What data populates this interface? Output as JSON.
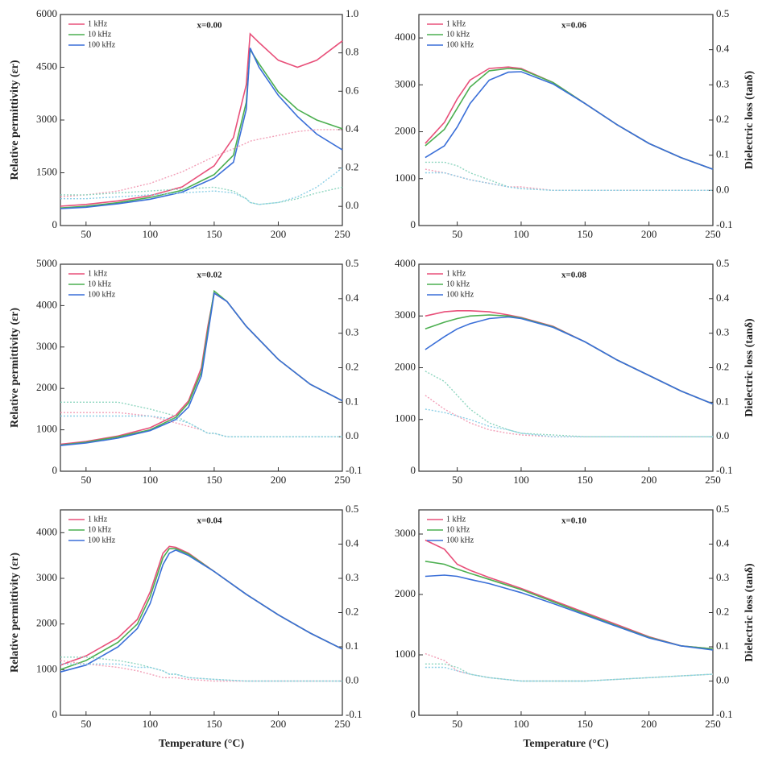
{
  "chart_data": [
    {
      "type": "line",
      "title": "x=0.00",
      "ylabel": "Relative permittivity (εr)",
      "x": [
        30,
        50,
        75,
        100,
        125,
        150,
        165,
        175,
        178,
        185,
        200,
        215,
        230,
        250
      ],
      "xlim": [
        30,
        250
      ],
      "xticks": [
        50,
        100,
        150,
        200,
        250
      ],
      "ylim": [
        0,
        6000
      ],
      "yticks": [
        0,
        1500,
        3000,
        4500,
        6000
      ],
      "y2lim": [
        -0.1,
        1.0
      ],
      "y2ticks": [
        {
          "value": 0,
          "label": "0.0"
        },
        0.2,
        0.4,
        0.6,
        0.8,
        {
          "value": 1,
          "label": "1.0"
        }
      ],
      "series": [
        {
          "name": "1 kHz",
          "color": "#e8507a",
          "values": [
            550,
            600,
            700,
            850,
            1100,
            1700,
            2500,
            4000,
            5450,
            5200,
            4700,
            4500,
            4700,
            5250
          ]
        },
        {
          "name": "10 kHz",
          "color": "#4caf50",
          "values": [
            500,
            550,
            650,
            800,
            1000,
            1450,
            2000,
            3500,
            5000,
            4600,
            3800,
            3300,
            3000,
            2750
          ]
        },
        {
          "name": "100 kHz",
          "color": "#3a6fd8",
          "values": [
            480,
            520,
            620,
            750,
            950,
            1350,
            1800,
            3300,
            5050,
            4500,
            3700,
            3100,
            2600,
            2150
          ]
        },
        {
          "color": "#f2a0b8",
          "axis": "y2",
          "values": [
            0.05,
            0.06,
            0.08,
            0.12,
            0.18,
            0.26,
            0.3,
            0.33,
            0.34,
            0.35,
            0.37,
            0.39,
            0.4,
            0.4
          ]
        },
        {
          "color": "#8fd6c0",
          "axis": "y2",
          "values": [
            0.06,
            0.06,
            0.07,
            0.08,
            0.09,
            0.1,
            0.08,
            0.04,
            0.02,
            0.01,
            0.02,
            0.04,
            0.07,
            0.1
          ]
        },
        {
          "color": "#8ccfe6",
          "axis": "y2",
          "values": [
            0.04,
            0.04,
            0.05,
            0.06,
            0.07,
            0.08,
            0.07,
            0.04,
            0.02,
            0.01,
            0.02,
            0.05,
            0.1,
            0.2
          ]
        }
      ]
    },
    {
      "type": "line",
      "title": "x=0.06",
      "y2label": "Dielectric loss (tanδ)",
      "x": [
        25,
        40,
        50,
        60,
        75,
        90,
        100,
        125,
        150,
        175,
        200,
        225,
        250
      ],
      "xlim": [
        20,
        250
      ],
      "xticks": [
        50,
        100,
        150,
        200,
        250
      ],
      "ylim": [
        0,
        4500
      ],
      "yticks": [
        0,
        1000,
        2000,
        3000,
        4000
      ],
      "y2lim": [
        -0.1,
        0.5
      ],
      "y2ticks": [
        -0.1,
        {
          "value": 0,
          "label": "0.0"
        },
        0.1,
        0.2,
        0.3,
        0.4,
        0.5
      ],
      "series": [
        {
          "name": "1 kHz",
          "color": "#e8507a",
          "values": [
            1750,
            2200,
            2700,
            3100,
            3350,
            3380,
            3350,
            3050,
            2600,
            2150,
            1750,
            1450,
            1200
          ]
        },
        {
          "name": "10 kHz",
          "color": "#4caf50",
          "values": [
            1700,
            2050,
            2500,
            2950,
            3300,
            3350,
            3330,
            3050,
            2600,
            2150,
            1750,
            1450,
            1200
          ]
        },
        {
          "name": "100 kHz",
          "color": "#3a6fd8",
          "values": [
            1450,
            1700,
            2100,
            2600,
            3100,
            3270,
            3280,
            3020,
            2600,
            2150,
            1750,
            1450,
            1200
          ]
        },
        {
          "color": "#f2a0b8",
          "axis": "y2",
          "values": [
            0.06,
            0.05,
            0.04,
            0.03,
            0.02,
            0.01,
            0.01,
            0.0,
            0.0,
            0.0,
            0.0,
            0.0,
            0.0
          ]
        },
        {
          "color": "#8fd6c0",
          "axis": "y2",
          "values": [
            0.08,
            0.08,
            0.07,
            0.05,
            0.03,
            0.01,
            0.005,
            0,
            0,
            0,
            0,
            0,
            0
          ]
        },
        {
          "color": "#8ccfe6",
          "axis": "y2",
          "values": [
            0.05,
            0.05,
            0.04,
            0.03,
            0.02,
            0.01,
            0.005,
            0,
            0,
            0,
            0,
            0,
            0
          ]
        }
      ]
    },
    {
      "type": "line",
      "title": "x=0.02",
      "ylabel": "Relative permittivity (εr)",
      "x": [
        30,
        50,
        75,
        100,
        120,
        130,
        140,
        145,
        150,
        160,
        175,
        200,
        225,
        250
      ],
      "xlim": [
        30,
        250
      ],
      "xticks": [
        50,
        100,
        150,
        200,
        250
      ],
      "ylim": [
        0,
        5000
      ],
      "yticks": [
        0,
        1000,
        2000,
        3000,
        4000,
        5000
      ],
      "y2lim": [
        -0.1,
        0.5
      ],
      "y2ticks": [
        -0.1,
        {
          "value": 0,
          "label": "0.0"
        },
        0.1,
        0.2,
        0.3,
        0.4,
        0.5
      ],
      "series": [
        {
          "name": "1 kHz",
          "color": "#e8507a",
          "values": [
            650,
            720,
            850,
            1050,
            1350,
            1700,
            2500,
            3500,
            4300,
            4100,
            3500,
            2700,
            2100,
            1700
          ]
        },
        {
          "name": "10 kHz",
          "color": "#4caf50",
          "values": [
            630,
            700,
            830,
            1000,
            1300,
            1650,
            2400,
            3400,
            4350,
            4100,
            3500,
            2700,
            2100,
            1700
          ]
        },
        {
          "name": "100 kHz",
          "color": "#3a6fd8",
          "values": [
            620,
            680,
            800,
            980,
            1250,
            1550,
            2300,
            3300,
            4300,
            4100,
            3500,
            2700,
            2100,
            1700
          ]
        },
        {
          "color": "#f2a0b8",
          "axis": "y2",
          "values": [
            0.07,
            0.07,
            0.07,
            0.06,
            0.04,
            0.03,
            0.02,
            0.01,
            0.01,
            0,
            0,
            0,
            0,
            0
          ]
        },
        {
          "color": "#8fd6c0",
          "axis": "y2",
          "values": [
            0.1,
            0.1,
            0.1,
            0.08,
            0.06,
            0.04,
            0.02,
            0.01,
            0.01,
            0,
            0,
            0,
            0,
            0
          ]
        },
        {
          "color": "#8ccfe6",
          "axis": "y2",
          "values": [
            0.06,
            0.06,
            0.06,
            0.06,
            0.05,
            0.04,
            0.02,
            0.01,
            0.01,
            0,
            0,
            0,
            0,
            0
          ]
        }
      ]
    },
    {
      "type": "line",
      "title": "x=0.08",
      "y2label": "Dielectric loss (tanδ)",
      "x": [
        25,
        40,
        50,
        60,
        75,
        90,
        100,
        125,
        150,
        175,
        200,
        225,
        250
      ],
      "xlim": [
        20,
        250
      ],
      "xticks": [
        50,
        100,
        150,
        200,
        250
      ],
      "ylim": [
        0,
        4000
      ],
      "yticks": [
        0,
        1000,
        2000,
        3000,
        4000
      ],
      "y2lim": [
        -0.1,
        0.5
      ],
      "y2ticks": [
        -0.1,
        {
          "value": 0,
          "label": "0.0"
        },
        0.1,
        0.2,
        0.3,
        0.4,
        0.5
      ],
      "series": [
        {
          "name": "1 kHz",
          "color": "#e8507a",
          "values": [
            3000,
            3080,
            3100,
            3100,
            3080,
            3020,
            2970,
            2800,
            2500,
            2150,
            1850,
            1550,
            1300
          ]
        },
        {
          "name": "10 kHz",
          "color": "#4caf50",
          "values": [
            2750,
            2880,
            2950,
            3000,
            3020,
            3000,
            2960,
            2790,
            2500,
            2150,
            1850,
            1550,
            1300
          ]
        },
        {
          "name": "100 kHz",
          "color": "#3a6fd8",
          "values": [
            2350,
            2600,
            2750,
            2850,
            2950,
            2980,
            2950,
            2780,
            2500,
            2150,
            1850,
            1550,
            1300
          ]
        },
        {
          "color": "#f2a0b8",
          "axis": "y2",
          "values": [
            0.12,
            0.08,
            0.06,
            0.04,
            0.02,
            0.01,
            0.005,
            0,
            0,
            0,
            0,
            0,
            0
          ]
        },
        {
          "color": "#8fd6c0",
          "axis": "y2",
          "values": [
            0.19,
            0.16,
            0.12,
            0.08,
            0.04,
            0.02,
            0.01,
            0.005,
            0,
            0,
            0,
            0,
            0
          ]
        },
        {
          "color": "#8ccfe6",
          "axis": "y2",
          "values": [
            0.08,
            0.07,
            0.06,
            0.05,
            0.03,
            0.02,
            0.01,
            0,
            0,
            0,
            0,
            0,
            0
          ]
        }
      ]
    },
    {
      "type": "line",
      "title": "x=0.04",
      "ylabel": "Relative permittivity (εr)",
      "xlabel": "Temperature (°C)",
      "x": [
        30,
        50,
        75,
        90,
        100,
        110,
        115,
        120,
        130,
        150,
        175,
        200,
        225,
        250
      ],
      "xlim": [
        30,
        250
      ],
      "xticks": [
        50,
        100,
        150,
        200,
        250
      ],
      "ylim": [
        0,
        4500
      ],
      "yticks": [
        0,
        1000,
        2000,
        3000,
        4000
      ],
      "y2lim": [
        -0.1,
        0.5
      ],
      "y2ticks": [
        -0.1,
        {
          "value": 0,
          "label": "0.0"
        },
        0.1,
        0.2,
        0.3,
        0.4,
        0.5
      ],
      "series": [
        {
          "name": "1 kHz",
          "color": "#e8507a",
          "values": [
            1100,
            1300,
            1700,
            2100,
            2700,
            3550,
            3700,
            3680,
            3550,
            3150,
            2650,
            2200,
            1800,
            1450
          ]
        },
        {
          "name": "10 kHz",
          "color": "#4caf50",
          "values": [
            1000,
            1200,
            1600,
            2000,
            2600,
            3450,
            3650,
            3650,
            3530,
            3150,
            2650,
            2200,
            1800,
            1450
          ]
        },
        {
          "name": "100 kHz",
          "color": "#3a6fd8",
          "values": [
            950,
            1100,
            1500,
            1900,
            2450,
            3300,
            3550,
            3620,
            3500,
            3150,
            2650,
            2200,
            1800,
            1450
          ]
        },
        {
          "color": "#f2a0b8",
          "axis": "y2",
          "values": [
            0.06,
            0.05,
            0.04,
            0.03,
            0.02,
            0.01,
            0.01,
            0.01,
            0.005,
            0,
            0,
            0,
            0,
            0
          ]
        },
        {
          "color": "#8fd6c0",
          "axis": "y2",
          "values": [
            0.07,
            0.07,
            0.06,
            0.05,
            0.04,
            0.03,
            0.02,
            0.02,
            0.01,
            0.005,
            0,
            0,
            0,
            0
          ]
        },
        {
          "color": "#8ccfe6",
          "axis": "y2",
          "values": [
            0.05,
            0.05,
            0.05,
            0.04,
            0.04,
            0.03,
            0.02,
            0.02,
            0.01,
            0.005,
            0,
            0,
            0,
            0
          ]
        }
      ]
    },
    {
      "type": "line",
      "title": "x=0.10",
      "y2label": "Dielectric loss (tanδ)",
      "xlabel": "Temperature (°C)",
      "x": [
        25,
        40,
        50,
        60,
        75,
        100,
        125,
        150,
        175,
        200,
        225,
        250
      ],
      "xlim": [
        20,
        250
      ],
      "xticks": [
        50,
        100,
        150,
        200,
        250
      ],
      "ylim": [
        0,
        3400
      ],
      "yticks": [
        0,
        1000,
        2000,
        3000
      ],
      "y2lim": [
        -0.1,
        0.5
      ],
      "y2ticks": [
        -0.1,
        {
          "value": 0,
          "label": "0.0"
        },
        0.1,
        0.2,
        0.3,
        0.4,
        0.5
      ],
      "series": [
        {
          "name": "1 kHz",
          "color": "#e8507a",
          "values": [
            2900,
            2750,
            2500,
            2400,
            2280,
            2100,
            1900,
            1700,
            1500,
            1300,
            1150,
            1100
          ]
        },
        {
          "name": "10 kHz",
          "color": "#4caf50",
          "values": [
            2550,
            2500,
            2420,
            2350,
            2250,
            2080,
            1880,
            1680,
            1480,
            1290,
            1150,
            1100
          ]
        },
        {
          "name": "100 kHz",
          "color": "#3a6fd8",
          "values": [
            2300,
            2320,
            2300,
            2250,
            2180,
            2030,
            1850,
            1660,
            1470,
            1280,
            1150,
            1080
          ]
        },
        {
          "color": "#f2a0b8",
          "axis": "y2",
          "values": [
            0.08,
            0.06,
            0.03,
            0.02,
            0.01,
            0,
            0,
            0,
            0.005,
            0.01,
            0.015,
            0.02
          ]
        },
        {
          "color": "#8fd6c0",
          "axis": "y2",
          "values": [
            0.05,
            0.05,
            0.04,
            0.02,
            0.01,
            0,
            0,
            0,
            0.005,
            0.01,
            0.015,
            0.02
          ]
        },
        {
          "color": "#8ccfe6",
          "axis": "y2",
          "values": [
            0.04,
            0.04,
            0.03,
            0.02,
            0.01,
            0,
            0,
            0,
            0.005,
            0.01,
            0.015,
            0.02
          ]
        }
      ]
    }
  ]
}
